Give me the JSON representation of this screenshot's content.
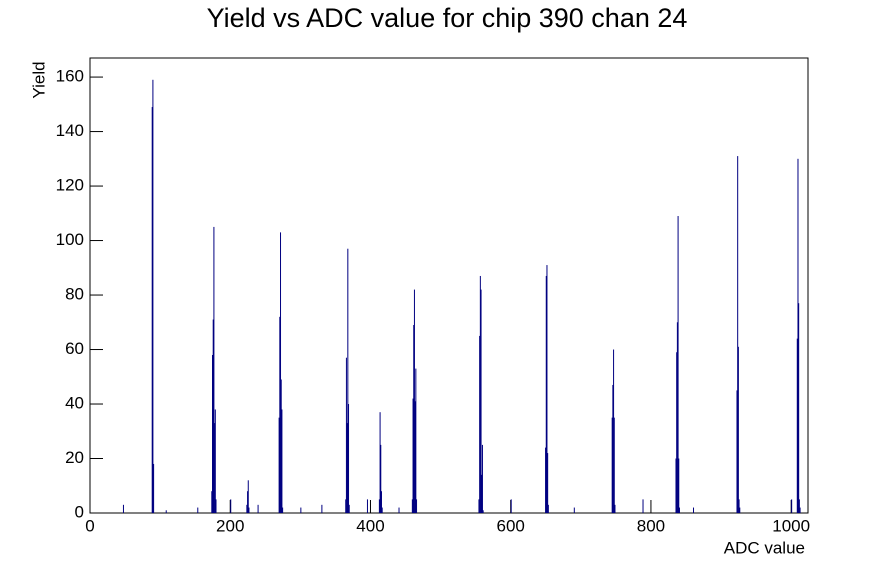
{
  "chart_data": {
    "type": "histogram",
    "title": "Yield vs ADC value for chip 390 chan 24",
    "x_label": "ADC value",
    "y_label": "Yield",
    "color": "#000080",
    "x": [
      47,
      88,
      89,
      90,
      108,
      153,
      173,
      174,
      175,
      176,
      177,
      178,
      179,
      200,
      223,
      224,
      225,
      226,
      239,
      269,
      270,
      271,
      272,
      273,
      274,
      300,
      330,
      364,
      365,
      366,
      367,
      368,
      369,
      395,
      412,
      413,
      414,
      415,
      416,
      440,
      459,
      460,
      461,
      462,
      463,
      464,
      465,
      554,
      555,
      556,
      557,
      558,
      559,
      560,
      600,
      649,
      650,
      651,
      652,
      653,
      690,
      744,
      745,
      746,
      747,
      748,
      788,
      835,
      836,
      837,
      838,
      839,
      840,
      860,
      922,
      923,
      924,
      925,
      926,
      1000,
      1008,
      1009,
      1010,
      1011,
      1012
    ],
    "values": [
      3,
      149,
      159,
      18,
      1,
      2,
      8,
      58,
      71,
      105,
      33,
      38,
      5,
      5,
      3,
      8,
      12,
      2,
      3,
      35,
      72,
      103,
      49,
      38,
      2,
      2,
      3,
      5,
      57,
      33,
      97,
      40,
      3,
      5,
      5,
      37,
      25,
      8,
      2,
      2,
      5,
      42,
      69,
      82,
      41,
      53,
      5,
      5,
      65,
      87,
      82,
      14,
      25,
      1,
      5,
      24,
      87,
      91,
      22,
      3,
      2,
      35,
      47,
      60,
      35,
      3,
      5,
      20,
      59,
      70,
      109,
      20,
      2,
      2,
      45,
      131,
      61,
      5,
      2,
      5,
      64,
      130,
      77,
      5,
      2
    ],
    "xlim": [
      0,
      1024
    ],
    "xticks": [
      0,
      200,
      400,
      600,
      800,
      1000
    ],
    "ylim": [
      0,
      167
    ],
    "yticks": [
      0,
      20,
      40,
      60,
      80,
      100,
      120,
      140,
      160
    ]
  }
}
